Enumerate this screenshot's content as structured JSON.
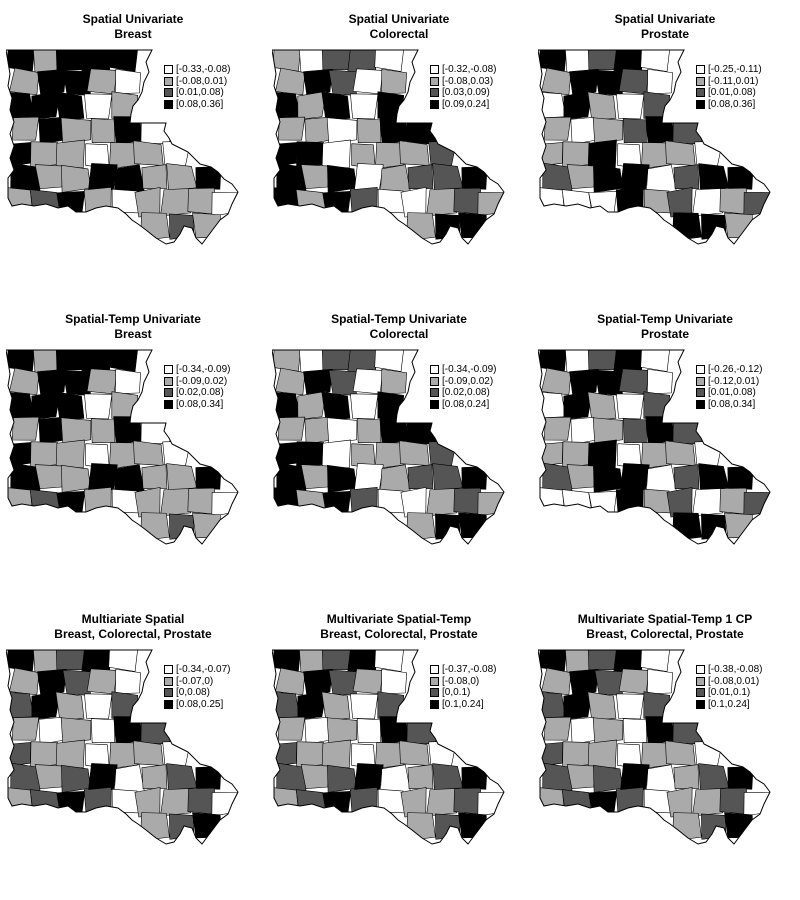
{
  "legend_fills": [
    "#ffffff",
    "#aaaaaa",
    "#555555",
    "#000000"
  ],
  "panels": [
    {
      "title_line1": "Spatial Univariate",
      "title_line2": "Breast",
      "legend": [
        "[-0.33,-0.08)",
        "[-0.08,0.01)",
        "[0.01,0.08)",
        "[0.08,0.36]"
      ],
      "classes": [
        3,
        1,
        3,
        3,
        3,
        1,
        3,
        3,
        1,
        0,
        3,
        3,
        3,
        0,
        1,
        1,
        3,
        1,
        1,
        3,
        0,
        3,
        1,
        1,
        0,
        1,
        1,
        0,
        3,
        1,
        1,
        3,
        3,
        1,
        1,
        3,
        1,
        2,
        3,
        1,
        0,
        1,
        1,
        1,
        0,
        1,
        2,
        1,
        1,
        1,
        1,
        0,
        1,
        1,
        0,
        2,
        1,
        1,
        0,
        0,
        3,
        0,
        2,
        1
      ]
    },
    {
      "title_line1": "Spatial Univariate",
      "title_line2": "Colorectal",
      "legend": [
        "[-0.32,-0.08)",
        "[-0.08,0.03)",
        "[0.03,0.09)",
        "[0.09,0.24]"
      ],
      "classes": [
        1,
        0,
        2,
        2,
        0,
        1,
        3,
        2,
        0,
        1,
        3,
        1,
        3,
        0,
        3,
        1,
        1,
        0,
        1,
        3,
        3,
        3,
        3,
        0,
        1,
        1,
        1,
        2,
        3,
        1,
        3,
        0,
        1,
        2,
        2,
        3,
        3,
        1,
        3,
        2,
        0,
        0,
        1,
        2,
        1,
        1,
        3,
        3,
        0,
        2,
        0,
        3,
        0,
        2,
        1,
        3,
        1,
        0,
        2,
        1,
        0,
        1,
        3,
        1
      ]
    },
    {
      "title_line1": "Spatial Univariate",
      "title_line2": "Prostate",
      "legend": [
        "[-0.25,-0.11)",
        "[-0.11,0.01)",
        "[0.01,0.08)",
        "[0.08,0.36]"
      ],
      "classes": [
        3,
        0,
        2,
        3,
        0,
        1,
        3,
        3,
        2,
        0,
        0,
        3,
        1,
        0,
        2,
        1,
        0,
        1,
        2,
        3,
        2,
        1,
        1,
        3,
        0,
        1,
        1,
        0,
        2,
        1,
        3,
        3,
        0,
        2,
        3,
        3,
        0,
        0,
        0,
        3,
        1,
        2,
        0,
        1,
        2,
        3,
        3,
        1,
        2,
        3,
        1,
        1,
        1,
        2,
        1,
        0,
        3,
        0,
        1,
        2,
        1,
        0,
        2,
        3
      ]
    },
    {
      "title_line1": "Spatial-Temp Univariate",
      "title_line2": "Breast",
      "legend": [
        "[-0.34,-0.09)",
        "[-0.09,0.02)",
        "[0.02,0.08)",
        "[0.08,0.34]"
      ],
      "classes": [
        3,
        1,
        3,
        3,
        3,
        1,
        3,
        3,
        1,
        0,
        3,
        3,
        3,
        0,
        1,
        1,
        3,
        1,
        1,
        3,
        0,
        3,
        1,
        1,
        0,
        1,
        1,
        0,
        3,
        1,
        1,
        3,
        3,
        1,
        1,
        3,
        1,
        2,
        3,
        1,
        0,
        1,
        1,
        1,
        0,
        1,
        2,
        1,
        1,
        1,
        1,
        0,
        1,
        1,
        0,
        2,
        1,
        1,
        0,
        0,
        3,
        0,
        2,
        1
      ]
    },
    {
      "title_line1": "Spatial-Temp Univariate",
      "title_line2": "Colorectal",
      "legend": [
        "[-0.34,-0.09)",
        "[-0.09,0.02)",
        "[0.02,0.08)",
        "[0.08,0.24]"
      ],
      "classes": [
        1,
        0,
        2,
        2,
        0,
        1,
        3,
        2,
        0,
        1,
        3,
        1,
        3,
        0,
        3,
        1,
        1,
        0,
        1,
        3,
        3,
        3,
        3,
        0,
        1,
        1,
        1,
        2,
        3,
        1,
        3,
        0,
        1,
        2,
        2,
        3,
        3,
        1,
        3,
        2,
        0,
        0,
        1,
        2,
        1,
        1,
        3,
        3,
        0,
        2,
        0,
        3,
        0,
        2,
        1,
        3,
        1,
        0,
        2,
        1,
        0,
        1,
        3,
        1
      ]
    },
    {
      "title_line1": "Spatial-Temp Univariate",
      "title_line2": "Prostate",
      "legend": [
        "[-0.26,-0.12)",
        "[-0.12,0.01)",
        "[0.01,0.08)",
        "[0.08,0.34]"
      ],
      "classes": [
        3,
        0,
        2,
        3,
        0,
        1,
        3,
        3,
        2,
        0,
        0,
        3,
        1,
        0,
        2,
        1,
        0,
        1,
        2,
        3,
        2,
        1,
        1,
        3,
        0,
        1,
        1,
        0,
        2,
        1,
        3,
        3,
        0,
        2,
        3,
        3,
        0,
        0,
        0,
        3,
        1,
        2,
        0,
        1,
        2,
        3,
        3,
        1,
        2,
        3,
        1,
        1,
        1,
        2,
        1,
        0,
        3,
        0,
        1,
        2,
        1,
        0,
        2,
        3
      ]
    },
    {
      "title_line1": "Multiariate Spatial",
      "title_line2": "Breast, Colorectal, Prostate",
      "legend": [
        "[-0.34,-0.07)",
        "[-0.07,0)",
        "[0,0.08)",
        "[0.08,0.25]"
      ],
      "classes": [
        3,
        1,
        2,
        3,
        0,
        1,
        3,
        2,
        1,
        0,
        2,
        3,
        1,
        0,
        2,
        1,
        0,
        1,
        0,
        3,
        2,
        2,
        1,
        1,
        0,
        1,
        1,
        0,
        2,
        1,
        2,
        3,
        0,
        1,
        2,
        3,
        1,
        2,
        3,
        2,
        0,
        1,
        1,
        2,
        0,
        1,
        2,
        3,
        0,
        2,
        1,
        0,
        2,
        1,
        0,
        2,
        1,
        0,
        2,
        1,
        0,
        0,
        1,
        2
      ]
    },
    {
      "title_line1": "Multivariate Spatial-Temp",
      "title_line2": "Breast, Colorectal, Prostate",
      "legend": [
        "[-0.37,-0.08)",
        "[-0.08,0)",
        "[0,0.1)",
        "[0.1,0.24]"
      ],
      "classes": [
        3,
        1,
        2,
        3,
        0,
        1,
        3,
        2,
        1,
        0,
        2,
        3,
        1,
        0,
        2,
        1,
        0,
        1,
        0,
        3,
        2,
        2,
        1,
        1,
        0,
        1,
        1,
        0,
        2,
        1,
        2,
        3,
        0,
        1,
        2,
        3,
        1,
        2,
        3,
        2,
        0,
        1,
        1,
        2,
        0,
        1,
        2,
        3,
        0,
        2,
        1,
        0,
        2,
        1,
        0,
        2,
        1,
        0,
        2,
        1,
        0,
        0,
        1,
        2
      ]
    },
    {
      "title_line1": "Multivariate Spatial-Temp 1 CP",
      "title_line2": "Breast, Colorectal, Prostate",
      "legend": [
        "[-0.38,-0.08)",
        "[-0.08,0.01)",
        "[0.01,0.1)",
        "[0.1,0.24]"
      ],
      "classes": [
        3,
        1,
        2,
        3,
        0,
        1,
        3,
        2,
        1,
        0,
        2,
        3,
        1,
        0,
        2,
        1,
        0,
        1,
        0,
        3,
        2,
        2,
        1,
        1,
        0,
        1,
        1,
        0,
        2,
        1,
        2,
        3,
        0,
        1,
        2,
        3,
        1,
        2,
        3,
        2,
        0,
        1,
        1,
        2,
        0,
        1,
        2,
        3,
        0,
        2,
        1,
        0,
        2,
        1,
        0,
        2,
        1,
        0,
        2,
        1,
        0,
        0,
        1,
        2
      ]
    }
  ]
}
